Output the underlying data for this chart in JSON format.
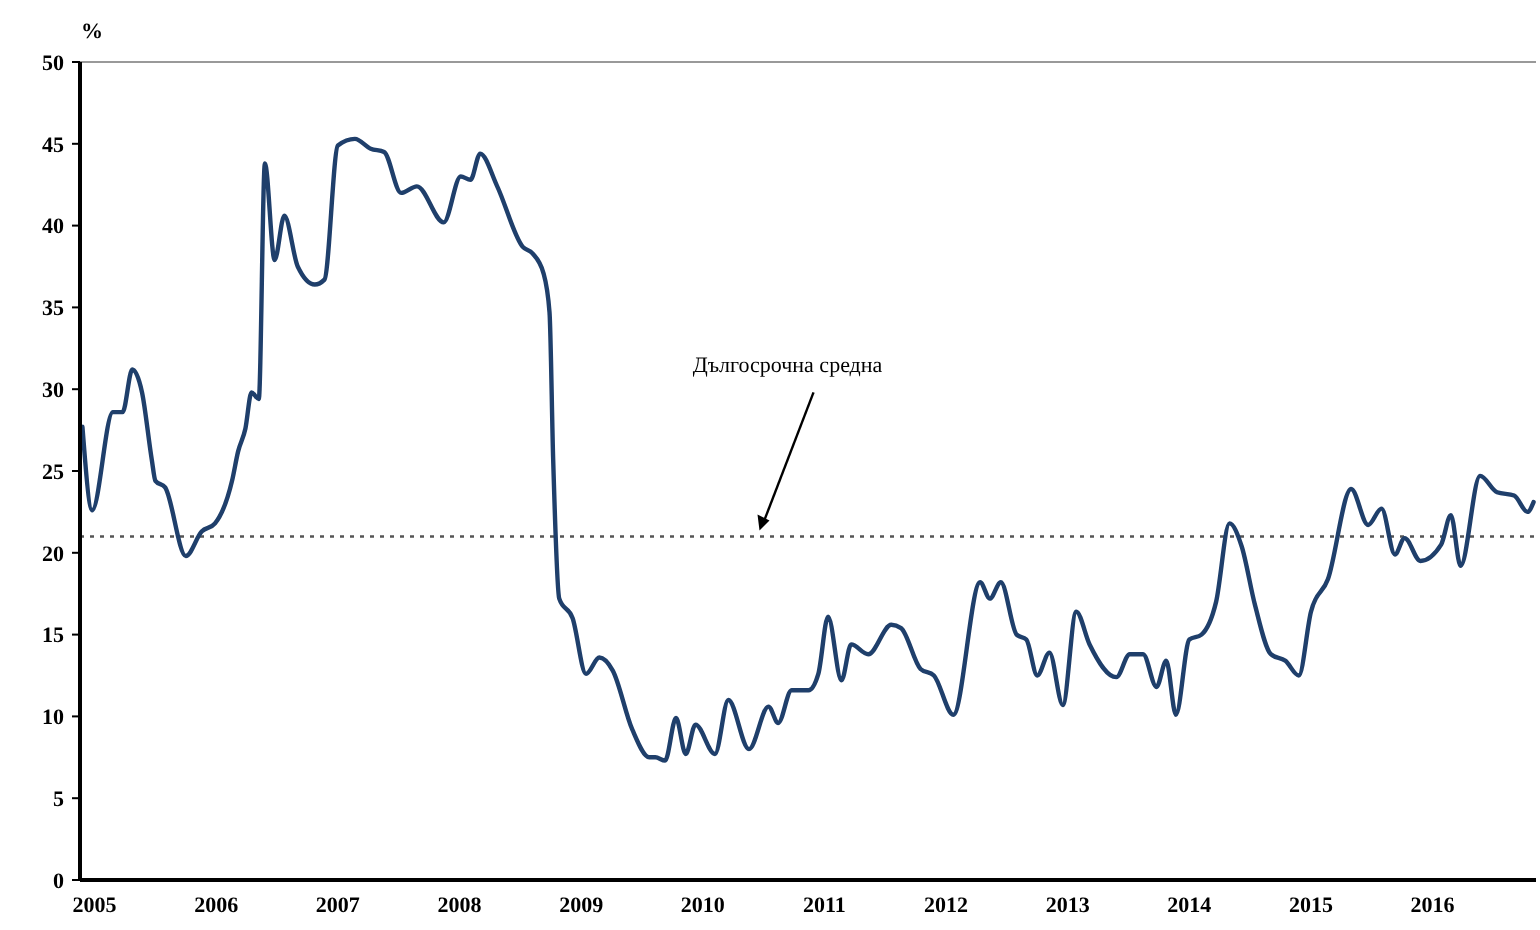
{
  "chart_data": {
    "type": "line",
    "ylabel": "%",
    "x": [
      2004.9,
      2004.98,
      2005.15,
      2005.23,
      2005.31,
      2005.39,
      2005.47,
      2005.5,
      2005.58,
      2005.75,
      2005.88,
      2005.99,
      2006.13,
      2006.18,
      2006.24,
      2006.29,
      2006.35,
      2006.4,
      2006.48,
      2006.56,
      2006.67,
      2006.81,
      2006.89,
      2007.0,
      2007.14,
      2007.27,
      2007.38,
      2007.52,
      2007.65,
      2007.87,
      2008.01,
      2008.09,
      2008.17,
      2008.31,
      2008.52,
      2008.6,
      2008.69,
      2008.74,
      2008.77,
      2008.82,
      2008.93,
      2009.04,
      2009.15,
      2009.26,
      2009.42,
      2009.56,
      2009.61,
      2009.69,
      2009.78,
      2009.86,
      2009.94,
      2010.1,
      2010.21,
      2010.38,
      2010.54,
      2010.62,
      2010.73,
      2010.87,
      2010.95,
      2011.03,
      2011.14,
      2011.22,
      2011.36,
      2011.55,
      2011.63,
      2011.79,
      2011.9,
      2012.06,
      2012.28,
      2012.36,
      2012.45,
      2012.58,
      2012.66,
      2012.75,
      2012.85,
      2012.96,
      2013.07,
      2013.18,
      2013.4,
      2013.51,
      2013.62,
      2013.73,
      2013.81,
      2013.89,
      2014.0,
      2014.1,
      2014.22,
      2014.33,
      2014.43,
      2014.54,
      2014.67,
      2014.79,
      2014.9,
      2015.0,
      2015.14,
      2015.33,
      2015.47,
      2015.58,
      2015.69,
      2015.77,
      2015.9,
      2016.07,
      2016.15,
      2016.23,
      2016.39,
      2016.53,
      2016.67,
      2016.78,
      2016.83
    ],
    "series": [
      {
        "color": "#1f3f6b",
        "values": [
          27.7,
          22.6,
          28.6,
          28.6,
          31.2,
          29.8,
          25.7,
          24.4,
          24,
          19.8,
          21.3,
          21.8,
          24.4,
          26.2,
          27.6,
          29.8,
          29.4,
          43.8,
          37.9,
          40.6,
          37.5,
          36.4,
          36.7,
          44.9,
          45.3,
          44.7,
          44.5,
          42,
          42.4,
          40.2,
          43,
          42.8,
          44.4,
          42.4,
          38.7,
          38.3,
          37.1,
          34.7,
          25.7,
          17.2,
          16,
          12.6,
          13.6,
          12.8,
          9.2,
          7.5,
          7.5,
          7.3,
          9.9,
          7.7,
          9.5,
          7.7,
          11,
          8,
          10.6,
          9.6,
          11.6,
          11.6,
          12.6,
          16.1,
          12.2,
          14.4,
          13.8,
          15.6,
          15.4,
          12.9,
          12.5,
          10.1,
          18.2,
          17.2,
          18.2,
          15,
          14.7,
          12.5,
          13.9,
          10.7,
          16.4,
          14.4,
          12.4,
          13.8,
          13.8,
          11.8,
          13.4,
          10.1,
          14.7,
          15,
          17,
          21.8,
          20.4,
          16.8,
          13.8,
          13.4,
          12.5,
          16.4,
          18.4,
          23.9,
          21.7,
          22.7,
          19.9,
          20.9,
          19.5,
          20.5,
          22.3,
          19.2,
          24.7,
          23.7,
          23.5,
          22.5,
          23.1
        ]
      }
    ],
    "xlim": [
      2004.88,
      2016.85
    ],
    "xticks": [
      2005,
      2006,
      2007,
      2008,
      2009,
      2010,
      2011,
      2012,
      2013,
      2014,
      2015,
      2016
    ],
    "ylim": [
      0,
      50
    ],
    "yticks": [
      0,
      5,
      10,
      15,
      20,
      25,
      30,
      35,
      40,
      45,
      50
    ],
    "ref_lines": [
      {
        "axis": "y",
        "value": 21,
        "color": "#555555",
        "line_style": "dotted"
      }
    ],
    "annotations": [
      {
        "text": "Дългосрочна средна",
        "x": 2010.45,
        "y": 21
      }
    ],
    "grid": false,
    "marker": "none",
    "line_style": "solid"
  }
}
